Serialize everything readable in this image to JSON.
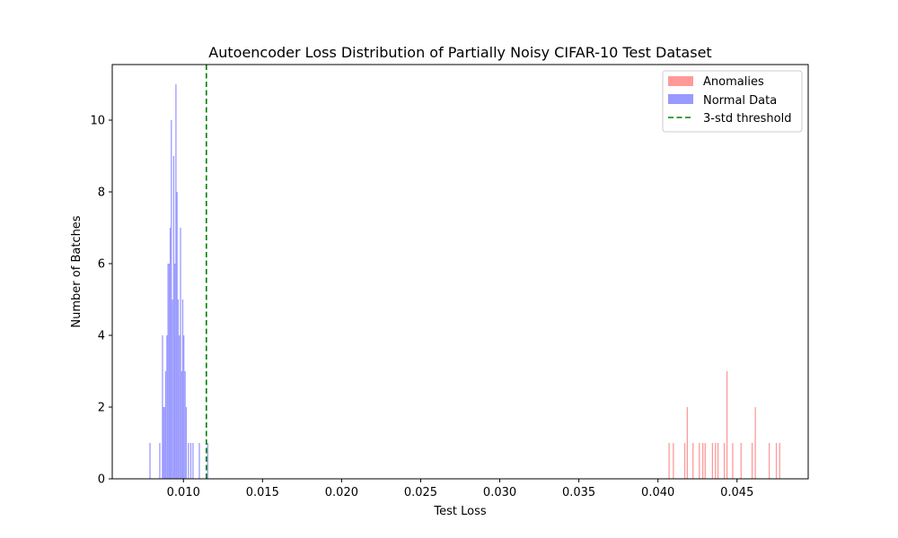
{
  "chart_data": {
    "type": "bar",
    "title": "Autoencoder Loss Distribution of Partially Noisy CIFAR-10 Test Dataset",
    "xlabel": "Test Loss",
    "ylabel": "Number of Batches",
    "xlim": [
      0.0055,
      0.0495
    ],
    "ylim": [
      0,
      11.55
    ],
    "xticks": [
      0.01,
      0.015,
      0.02,
      0.025,
      0.03,
      0.035,
      0.04,
      0.045
    ],
    "xtick_labels": [
      "0.010",
      "0.015",
      "0.020",
      "0.025",
      "0.030",
      "0.035",
      "0.040",
      "0.045"
    ],
    "yticks": [
      0,
      2,
      4,
      6,
      8,
      10
    ],
    "ytick_labels": [
      "0",
      "2",
      "4",
      "6",
      "8",
      "10"
    ],
    "grid": false,
    "legend_position": "top-right",
    "threshold": {
      "name": "3-std threshold",
      "x": 0.01145,
      "style": "dashed",
      "color": "#008000"
    },
    "series": [
      {
        "name": "Anomalies",
        "color": "#ff9999",
        "bin_width": 7.24e-05,
        "bins": [
          [
            0.04067,
            1
          ],
          [
            0.04094,
            1
          ],
          [
            0.04166,
            1
          ],
          [
            0.04182,
            2
          ],
          [
            0.04218,
            1
          ],
          [
            0.04258,
            1
          ],
          [
            0.0428,
            1
          ],
          [
            0.04295,
            1
          ],
          [
            0.04341,
            1
          ],
          [
            0.0436,
            1
          ],
          [
            0.04376,
            1
          ],
          [
            0.04416,
            1
          ],
          [
            0.04433,
            3
          ],
          [
            0.04469,
            1
          ],
          [
            0.04522,
            1
          ],
          [
            0.04592,
            1
          ],
          [
            0.04612,
            2
          ],
          [
            0.047,
            1
          ],
          [
            0.04745,
            1
          ],
          [
            0.04766,
            1
          ]
        ]
      },
      {
        "name": "Normal Data",
        "color": "#9999ff",
        "bin_width": 7.24e-05,
        "bins": [
          [
            0.00785,
            1
          ],
          [
            0.00847,
            1
          ],
          [
            0.00864,
            4
          ],
          [
            0.0087,
            2
          ],
          [
            0.00877,
            2
          ],
          [
            0.00884,
            3
          ],
          [
            0.00892,
            4
          ],
          [
            0.00899,
            6
          ],
          [
            0.00906,
            6
          ],
          [
            0.00913,
            7
          ],
          [
            0.0092,
            10
          ],
          [
            0.00927,
            5
          ],
          [
            0.00935,
            9
          ],
          [
            0.00942,
            6
          ],
          [
            0.00949,
            11
          ],
          [
            0.00956,
            8
          ],
          [
            0.00963,
            5
          ],
          [
            0.00971,
            4
          ],
          [
            0.00978,
            7
          ],
          [
            0.00985,
            3
          ],
          [
            0.00992,
            5
          ],
          [
            0.00999,
            4
          ],
          [
            0.01007,
            3
          ],
          [
            0.01014,
            2
          ],
          [
            0.01028,
            1
          ],
          [
            0.01043,
            1
          ],
          [
            0.01057,
            1
          ],
          [
            0.01097,
            1
          ],
          [
            0.0115,
            1
          ]
        ]
      }
    ]
  }
}
